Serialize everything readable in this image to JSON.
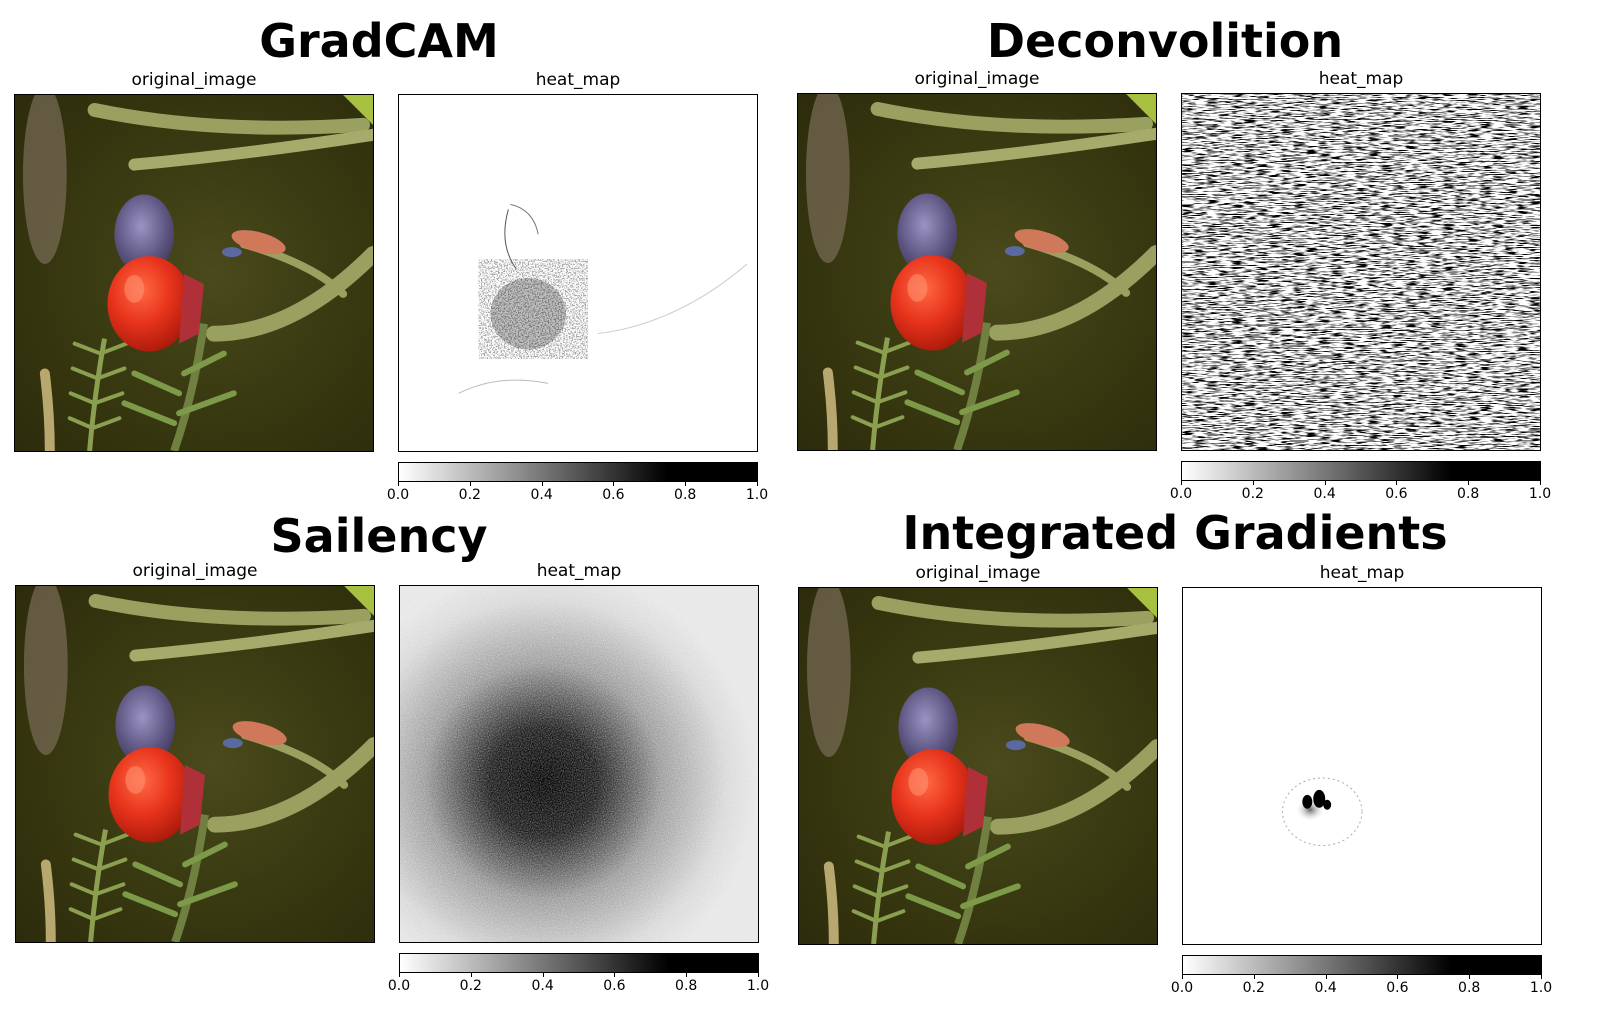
{
  "panels": [
    {
      "title": "GradCAM",
      "left_label": "original_image",
      "right_label": "heat_map"
    },
    {
      "title": "Deconvolition",
      "left_label": "original_image",
      "right_label": "heat_map"
    },
    {
      "title": "Sailency",
      "left_label": "original_image",
      "right_label": "heat_map"
    },
    {
      "title": "Integrated Gradients",
      "left_label": "original_image",
      "right_label": "heat_map"
    }
  ],
  "colorbar_ticks": [
    "0.0",
    "0.2",
    "0.4",
    "0.6",
    "0.8",
    "1.0"
  ],
  "colors": {
    "berry_red": "#e8341c",
    "background_dark": "#3a3a14",
    "leaf_green": "#9aa060"
  }
}
